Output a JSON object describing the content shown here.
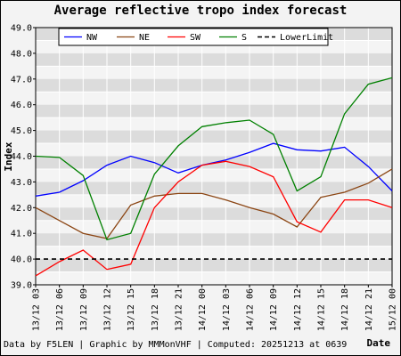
{
  "footer": "Data by F5LEN | Graphic by MMMonVHF | Computed: 20251213 at 0639",
  "chart_data": {
    "type": "line",
    "title": "Average reflective tropo index forecast",
    "xlabel": "Date",
    "ylabel": "Index",
    "ylim": [
      39.0,
      49.0
    ],
    "yticks": [
      "39.0",
      "40.0",
      "41.0",
      "42.0",
      "43.0",
      "44.0",
      "45.0",
      "46.0",
      "47.0",
      "48.0",
      "49.0"
    ],
    "grid": true,
    "legend_position": "top",
    "categories": [
      "13/12 03",
      "13/12 06",
      "13/12 09",
      "13/12 12",
      "13/12 15",
      "13/12 18",
      "13/12 21",
      "14/12 00",
      "14/12 03",
      "14/12 06",
      "14/12 09",
      "14/12 12",
      "14/12 15",
      "14/12 18",
      "14/12 21",
      "15/12 00"
    ],
    "series": [
      {
        "name": "NW",
        "color": "#0000ff",
        "dashed": false,
        "values": [
          42.45,
          42.6,
          43.05,
          43.65,
          44.0,
          43.75,
          43.35,
          43.65,
          43.85,
          44.15,
          44.5,
          44.25,
          44.2,
          44.35,
          43.6,
          42.65
        ]
      },
      {
        "name": "NE",
        "color": "#8b4513",
        "dashed": false,
        "values": [
          42.0,
          41.5,
          41.0,
          40.8,
          42.1,
          42.45,
          42.55,
          42.55,
          42.3,
          42.0,
          41.75,
          41.25,
          42.4,
          42.6,
          42.95,
          43.5
        ]
      },
      {
        "name": "SW",
        "color": "#ff0000",
        "dashed": false,
        "values": [
          39.35,
          39.9,
          40.35,
          39.6,
          39.8,
          42.0,
          43.0,
          43.65,
          43.8,
          43.6,
          43.2,
          41.45,
          41.05,
          42.3,
          42.3,
          42.0
        ]
      },
      {
        "name": "S",
        "color": "#008000",
        "dashed": false,
        "values": [
          44.0,
          43.95,
          43.25,
          40.75,
          41.0,
          43.3,
          44.4,
          45.15,
          45.3,
          45.4,
          44.85,
          42.65,
          43.2,
          45.65,
          46.8,
          47.05
        ]
      },
      {
        "name": "LowerLimit",
        "color": "#000000",
        "dashed": true,
        "values": [
          40.0,
          40.0,
          40.0,
          40.0,
          40.0,
          40.0,
          40.0,
          40.0,
          40.0,
          40.0,
          40.0,
          40.0,
          40.0,
          40.0,
          40.0,
          40.0
        ]
      }
    ]
  }
}
